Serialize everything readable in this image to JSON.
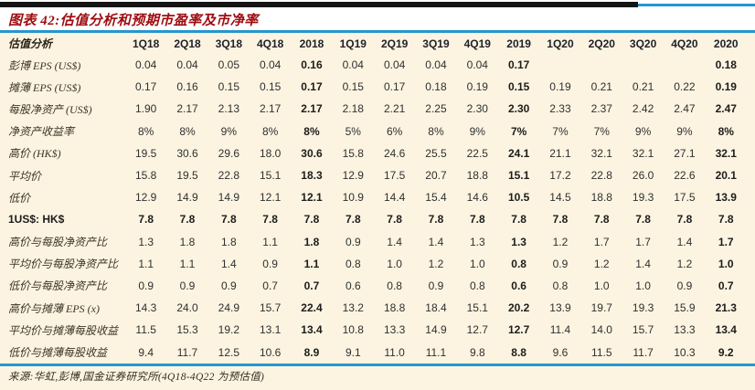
{
  "title": "图表 42:估值分析和预期市盈率及市净率",
  "footer": "来源:华虹,彭博,国金证券研究所(4Q18-4Q22 为预估值)",
  "colors": {
    "accent_blue": "#2397CE",
    "title_red": "#9E0C10",
    "background_cream": "#FCF4E1",
    "rule_black": "#141414"
  },
  "table": {
    "label_column": "估值分析",
    "columns": [
      "1Q18",
      "2Q18",
      "3Q18",
      "4Q18",
      "2018",
      "1Q19",
      "2Q19",
      "3Q19",
      "4Q19",
      "2019",
      "1Q20",
      "2Q20",
      "3Q20",
      "4Q20",
      "2020"
    ],
    "bold_columns": [
      4,
      9,
      14
    ],
    "rows": [
      {
        "label": "彭博 EPS (US$)",
        "bold": false,
        "values": [
          "0.04",
          "0.04",
          "0.05",
          "0.04",
          "0.16",
          "0.04",
          "0.04",
          "0.04",
          "0.04",
          "0.17",
          "",
          "",
          "",
          "",
          "0.18"
        ]
      },
      {
        "label": "摊薄 EPS (US$)",
        "bold": false,
        "values": [
          "0.17",
          "0.16",
          "0.15",
          "0.15",
          "0.17",
          "0.15",
          "0.17",
          "0.18",
          "0.19",
          "0.15",
          "0.19",
          "0.21",
          "0.21",
          "0.22",
          "0.19"
        ]
      },
      {
        "label": "每股净资产 (US$)",
        "bold": false,
        "values": [
          "1.90",
          "2.17",
          "2.13",
          "2.17",
          "2.17",
          "2.18",
          "2.21",
          "2.25",
          "2.30",
          "2.30",
          "2.33",
          "2.37",
          "2.42",
          "2.47",
          "2.47"
        ]
      },
      {
        "label": "净资产收益率",
        "bold": false,
        "values": [
          "8%",
          "8%",
          "9%",
          "8%",
          "8%",
          "5%",
          "6%",
          "8%",
          "9%",
          "7%",
          "7%",
          "7%",
          "9%",
          "9%",
          "8%"
        ]
      },
      {
        "label": "高价 (HK$)",
        "bold": false,
        "values": [
          "19.5",
          "30.6",
          "29.6",
          "18.0",
          "30.6",
          "15.8",
          "24.6",
          "25.5",
          "22.5",
          "24.1",
          "21.1",
          "32.1",
          "32.1",
          "27.1",
          "32.1"
        ]
      },
      {
        "label": "平均价",
        "bold": false,
        "values": [
          "15.8",
          "19.5",
          "22.8",
          "15.1",
          "18.3",
          "12.9",
          "17.5",
          "20.7",
          "18.8",
          "15.1",
          "17.2",
          "22.8",
          "26.0",
          "22.6",
          "20.1"
        ]
      },
      {
        "label": "低价",
        "bold": false,
        "values": [
          "12.9",
          "14.9",
          "14.9",
          "12.1",
          "12.1",
          "10.9",
          "14.4",
          "15.4",
          "14.6",
          "10.5",
          "14.5",
          "18.8",
          "19.3",
          "17.5",
          "13.9"
        ]
      },
      {
        "label": "1US$: HK$",
        "bold": true,
        "values": [
          "7.8",
          "7.8",
          "7.8",
          "7.8",
          "7.8",
          "7.8",
          "7.8",
          "7.8",
          "7.8",
          "7.8",
          "7.8",
          "7.8",
          "7.8",
          "7.8",
          "7.8"
        ]
      },
      {
        "label": "高价与每股净资产比",
        "bold": false,
        "values": [
          "1.3",
          "1.8",
          "1.8",
          "1.1",
          "1.8",
          "0.9",
          "1.4",
          "1.4",
          "1.3",
          "1.3",
          "1.2",
          "1.7",
          "1.7",
          "1.4",
          "1.7"
        ]
      },
      {
        "label": "平均价与每股净资产比",
        "bold": false,
        "values": [
          "1.1",
          "1.1",
          "1.4",
          "0.9",
          "1.1",
          "0.8",
          "1.0",
          "1.2",
          "1.0",
          "0.8",
          "0.9",
          "1.2",
          "1.4",
          "1.2",
          "1.0"
        ]
      },
      {
        "label": "低价与每股净资产比",
        "bold": false,
        "values": [
          "0.9",
          "0.9",
          "0.9",
          "0.7",
          "0.7",
          "0.6",
          "0.8",
          "0.9",
          "0.8",
          "0.6",
          "0.8",
          "1.0",
          "1.0",
          "0.9",
          "0.7"
        ]
      },
      {
        "label": "高价与摊薄 EPS (x)",
        "bold": false,
        "values": [
          "14.3",
          "24.0",
          "24.9",
          "15.7",
          "22.4",
          "13.2",
          "18.8",
          "18.4",
          "15.1",
          "20.2",
          "13.9",
          "19.7",
          "19.3",
          "15.9",
          "21.3"
        ]
      },
      {
        "label": "平均价与摊薄每股收益",
        "bold": false,
        "values": [
          "11.5",
          "15.3",
          "19.2",
          "13.1",
          "13.4",
          "10.8",
          "13.3",
          "14.9",
          "12.7",
          "12.7",
          "11.4",
          "14.0",
          "15.7",
          "13.3",
          "13.4"
        ]
      },
      {
        "label": "低价与摊薄每股收益",
        "bold": false,
        "values": [
          "9.4",
          "11.7",
          "12.5",
          "10.6",
          "8.9",
          "9.1",
          "11.0",
          "11.1",
          "9.8",
          "8.8",
          "9.6",
          "11.5",
          "11.7",
          "10.3",
          "9.2"
        ]
      }
    ]
  }
}
